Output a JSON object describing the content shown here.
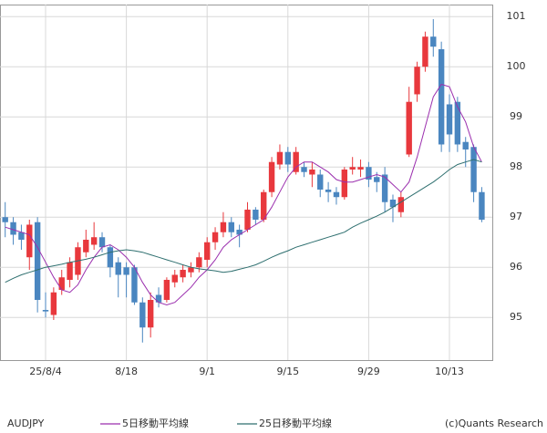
{
  "chart_data": {
    "type": "candlestick",
    "title": "AUDJPY",
    "credit": "(c)Quants Research",
    "up_color": "#e8383d",
    "down_color": "#4a86c0",
    "categories": [
      null,
      null,
      null,
      null,
      null,
      "25/8/4",
      null,
      null,
      null,
      null,
      null,
      null,
      null,
      null,
      null,
      "8/18",
      null,
      null,
      null,
      null,
      null,
      null,
      null,
      null,
      null,
      "9/1",
      null,
      null,
      null,
      null,
      null,
      null,
      null,
      null,
      null,
      "9/15",
      null,
      null,
      null,
      null,
      null,
      null,
      null,
      null,
      null,
      "9/29",
      null,
      null,
      null,
      null,
      null,
      null,
      null,
      null,
      null,
      "10/13",
      null,
      null,
      null,
      null
    ],
    "open": [
      97.0,
      96.9,
      96.7,
      96.2,
      96.9,
      95.15,
      95.05,
      95.55,
      95.75,
      95.85,
      96.3,
      96.45,
      96.6,
      96.4,
      96.1,
      96.0,
      96.0,
      95.3,
      94.8,
      95.45,
      95.35,
      95.7,
      95.8,
      95.9,
      96.0,
      96.15,
      96.5,
      96.7,
      96.9,
      96.75,
      96.75,
      97.15,
      96.95,
      97.5,
      98.05,
      98.3,
      97.9,
      98.0,
      97.85,
      97.85,
      97.55,
      97.5,
      97.4,
      97.95,
      97.95,
      98.0,
      97.8,
      97.85,
      97.35,
      97.1,
      98.25,
      99.45,
      100.0,
      100.6,
      100.35,
      99.25,
      99.3,
      98.5,
      98.4,
      97.5
    ],
    "high": [
      97.3,
      97.0,
      96.85,
      96.95,
      97.0,
      95.5,
      95.6,
      95.95,
      96.2,
      96.5,
      96.75,
      96.9,
      96.7,
      96.45,
      96.2,
      96.1,
      96.05,
      95.4,
      95.5,
      95.6,
      95.8,
      95.95,
      96.05,
      96.1,
      96.3,
      96.6,
      96.8,
      97.1,
      97.0,
      96.85,
      97.3,
      97.2,
      97.55,
      98.2,
      98.45,
      98.4,
      98.4,
      98.1,
      98.1,
      97.95,
      97.7,
      97.6,
      98.0,
      98.2,
      98.15,
      98.1,
      97.9,
      98.0,
      97.45,
      97.5,
      99.6,
      100.1,
      100.7,
      100.95,
      100.5,
      99.45,
      99.4,
      98.6,
      98.45,
      97.6
    ],
    "low": [
      96.6,
      96.45,
      96.35,
      95.95,
      95.1,
      95.0,
      94.95,
      95.45,
      95.6,
      95.75,
      96.2,
      96.35,
      96.3,
      95.8,
      95.4,
      95.4,
      95.25,
      94.5,
      94.6,
      95.2,
      95.3,
      95.6,
      95.7,
      95.8,
      95.9,
      96.0,
      96.35,
      96.6,
      96.6,
      96.4,
      96.7,
      96.85,
      96.9,
      97.4,
      97.95,
      97.9,
      97.85,
      97.8,
      97.6,
      97.4,
      97.3,
      97.25,
      97.35,
      97.85,
      97.8,
      97.6,
      97.5,
      97.1,
      96.9,
      97.0,
      98.2,
      99.3,
      99.9,
      100.2,
      98.3,
      98.3,
      98.3,
      98.0,
      97.3,
      96.9
    ],
    "close": [
      96.9,
      96.65,
      96.55,
      96.85,
      95.35,
      95.12,
      95.5,
      95.8,
      96.1,
      96.4,
      96.55,
      96.6,
      96.4,
      96.0,
      95.85,
      95.85,
      95.3,
      94.8,
      95.35,
      95.3,
      95.75,
      95.85,
      95.95,
      96.0,
      96.2,
      96.5,
      96.7,
      96.9,
      96.7,
      96.65,
      97.15,
      96.95,
      97.5,
      98.1,
      98.3,
      98.05,
      98.3,
      97.9,
      97.95,
      97.55,
      97.5,
      97.4,
      97.95,
      98.0,
      98.0,
      97.75,
      97.7,
      97.3,
      97.2,
      97.4,
      99.3,
      100.0,
      100.6,
      100.4,
      98.45,
      98.65,
      98.45,
      98.35,
      97.5,
      96.95
    ],
    "series": [
      {
        "name": "5日移動平均線",
        "color": "#9b2fae",
        "values": [
          96.8,
          96.75,
          96.7,
          96.65,
          96.4,
          96.1,
          95.8,
          95.55,
          95.5,
          95.65,
          95.95,
          96.2,
          96.4,
          96.45,
          96.35,
          96.2,
          96.0,
          95.7,
          95.45,
          95.3,
          95.25,
          95.3,
          95.45,
          95.6,
          95.8,
          95.95,
          96.15,
          96.4,
          96.55,
          96.65,
          96.75,
          96.85,
          96.95,
          97.2,
          97.5,
          97.8,
          98.0,
          98.1,
          98.1,
          98.0,
          97.9,
          97.75,
          97.7,
          97.7,
          97.75,
          97.8,
          97.85,
          97.8,
          97.65,
          97.5,
          97.7,
          98.2,
          98.8,
          99.4,
          99.65,
          99.6,
          99.2,
          98.9,
          98.4,
          98.1
        ]
      },
      {
        "name": "25日移動平均線",
        "color": "#2e6f6f",
        "values": [
          95.7,
          95.78,
          95.85,
          95.9,
          95.95,
          96.0,
          96.03,
          96.06,
          96.1,
          96.13,
          96.16,
          96.2,
          96.25,
          96.3,
          96.33,
          96.35,
          96.33,
          96.3,
          96.25,
          96.2,
          96.15,
          96.1,
          96.05,
          96.0,
          95.97,
          95.95,
          95.93,
          95.9,
          95.92,
          95.96,
          96.0,
          96.05,
          96.12,
          96.2,
          96.27,
          96.33,
          96.4,
          96.45,
          96.5,
          96.55,
          96.6,
          96.65,
          96.7,
          96.8,
          96.88,
          96.95,
          97.02,
          97.1,
          97.2,
          97.3,
          97.4,
          97.5,
          97.6,
          97.7,
          97.82,
          97.95,
          98.05,
          98.1,
          98.15,
          98.1
        ]
      }
    ],
    "ylim": [
      94.15,
      101.24
    ],
    "yticks": [
      95,
      96,
      97,
      98,
      99,
      100,
      101
    ],
    "grid": true
  }
}
